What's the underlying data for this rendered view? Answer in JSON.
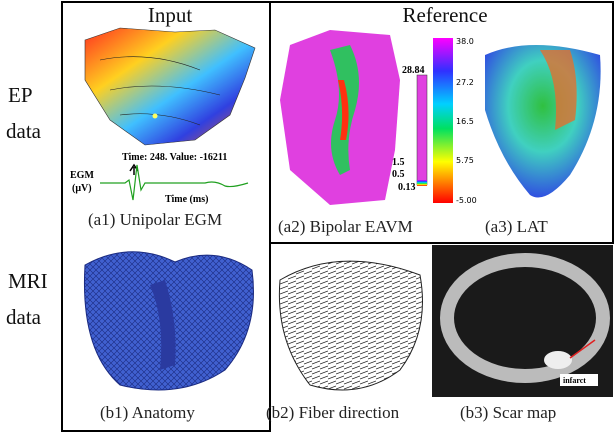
{
  "header": {
    "input": "Input",
    "reference": "Reference"
  },
  "rows": [
    {
      "label_line1": "EP",
      "label_line2": "data"
    },
    {
      "label_line1": "MRI",
      "label_line2": "data"
    }
  ],
  "panels": {
    "a1": {
      "caption": "(a1) Unipolar EGM",
      "egm_axis": "EGM",
      "egm_unit": "(μV)",
      "readout": "Time: 248. Value: -16211",
      "time_axis": "Time (ms)"
    },
    "a2": {
      "caption": "(a2) Bipolar EAVM",
      "colorbar_labels": [
        "28.84",
        "1.5",
        "0.5",
        "0.13"
      ]
    },
    "a3": {
      "caption": "(a3) LAT",
      "colorbar_labels": [
        "38.0",
        "27.2",
        "16.5",
        "5.75",
        "-5.00"
      ]
    },
    "b1": {
      "caption": "(b1) Anatomy"
    },
    "b2": {
      "caption": "(b2) Fiber direction"
    },
    "b3": {
      "caption": "(b3) Scar map",
      "annotation": "infarct"
    }
  }
}
